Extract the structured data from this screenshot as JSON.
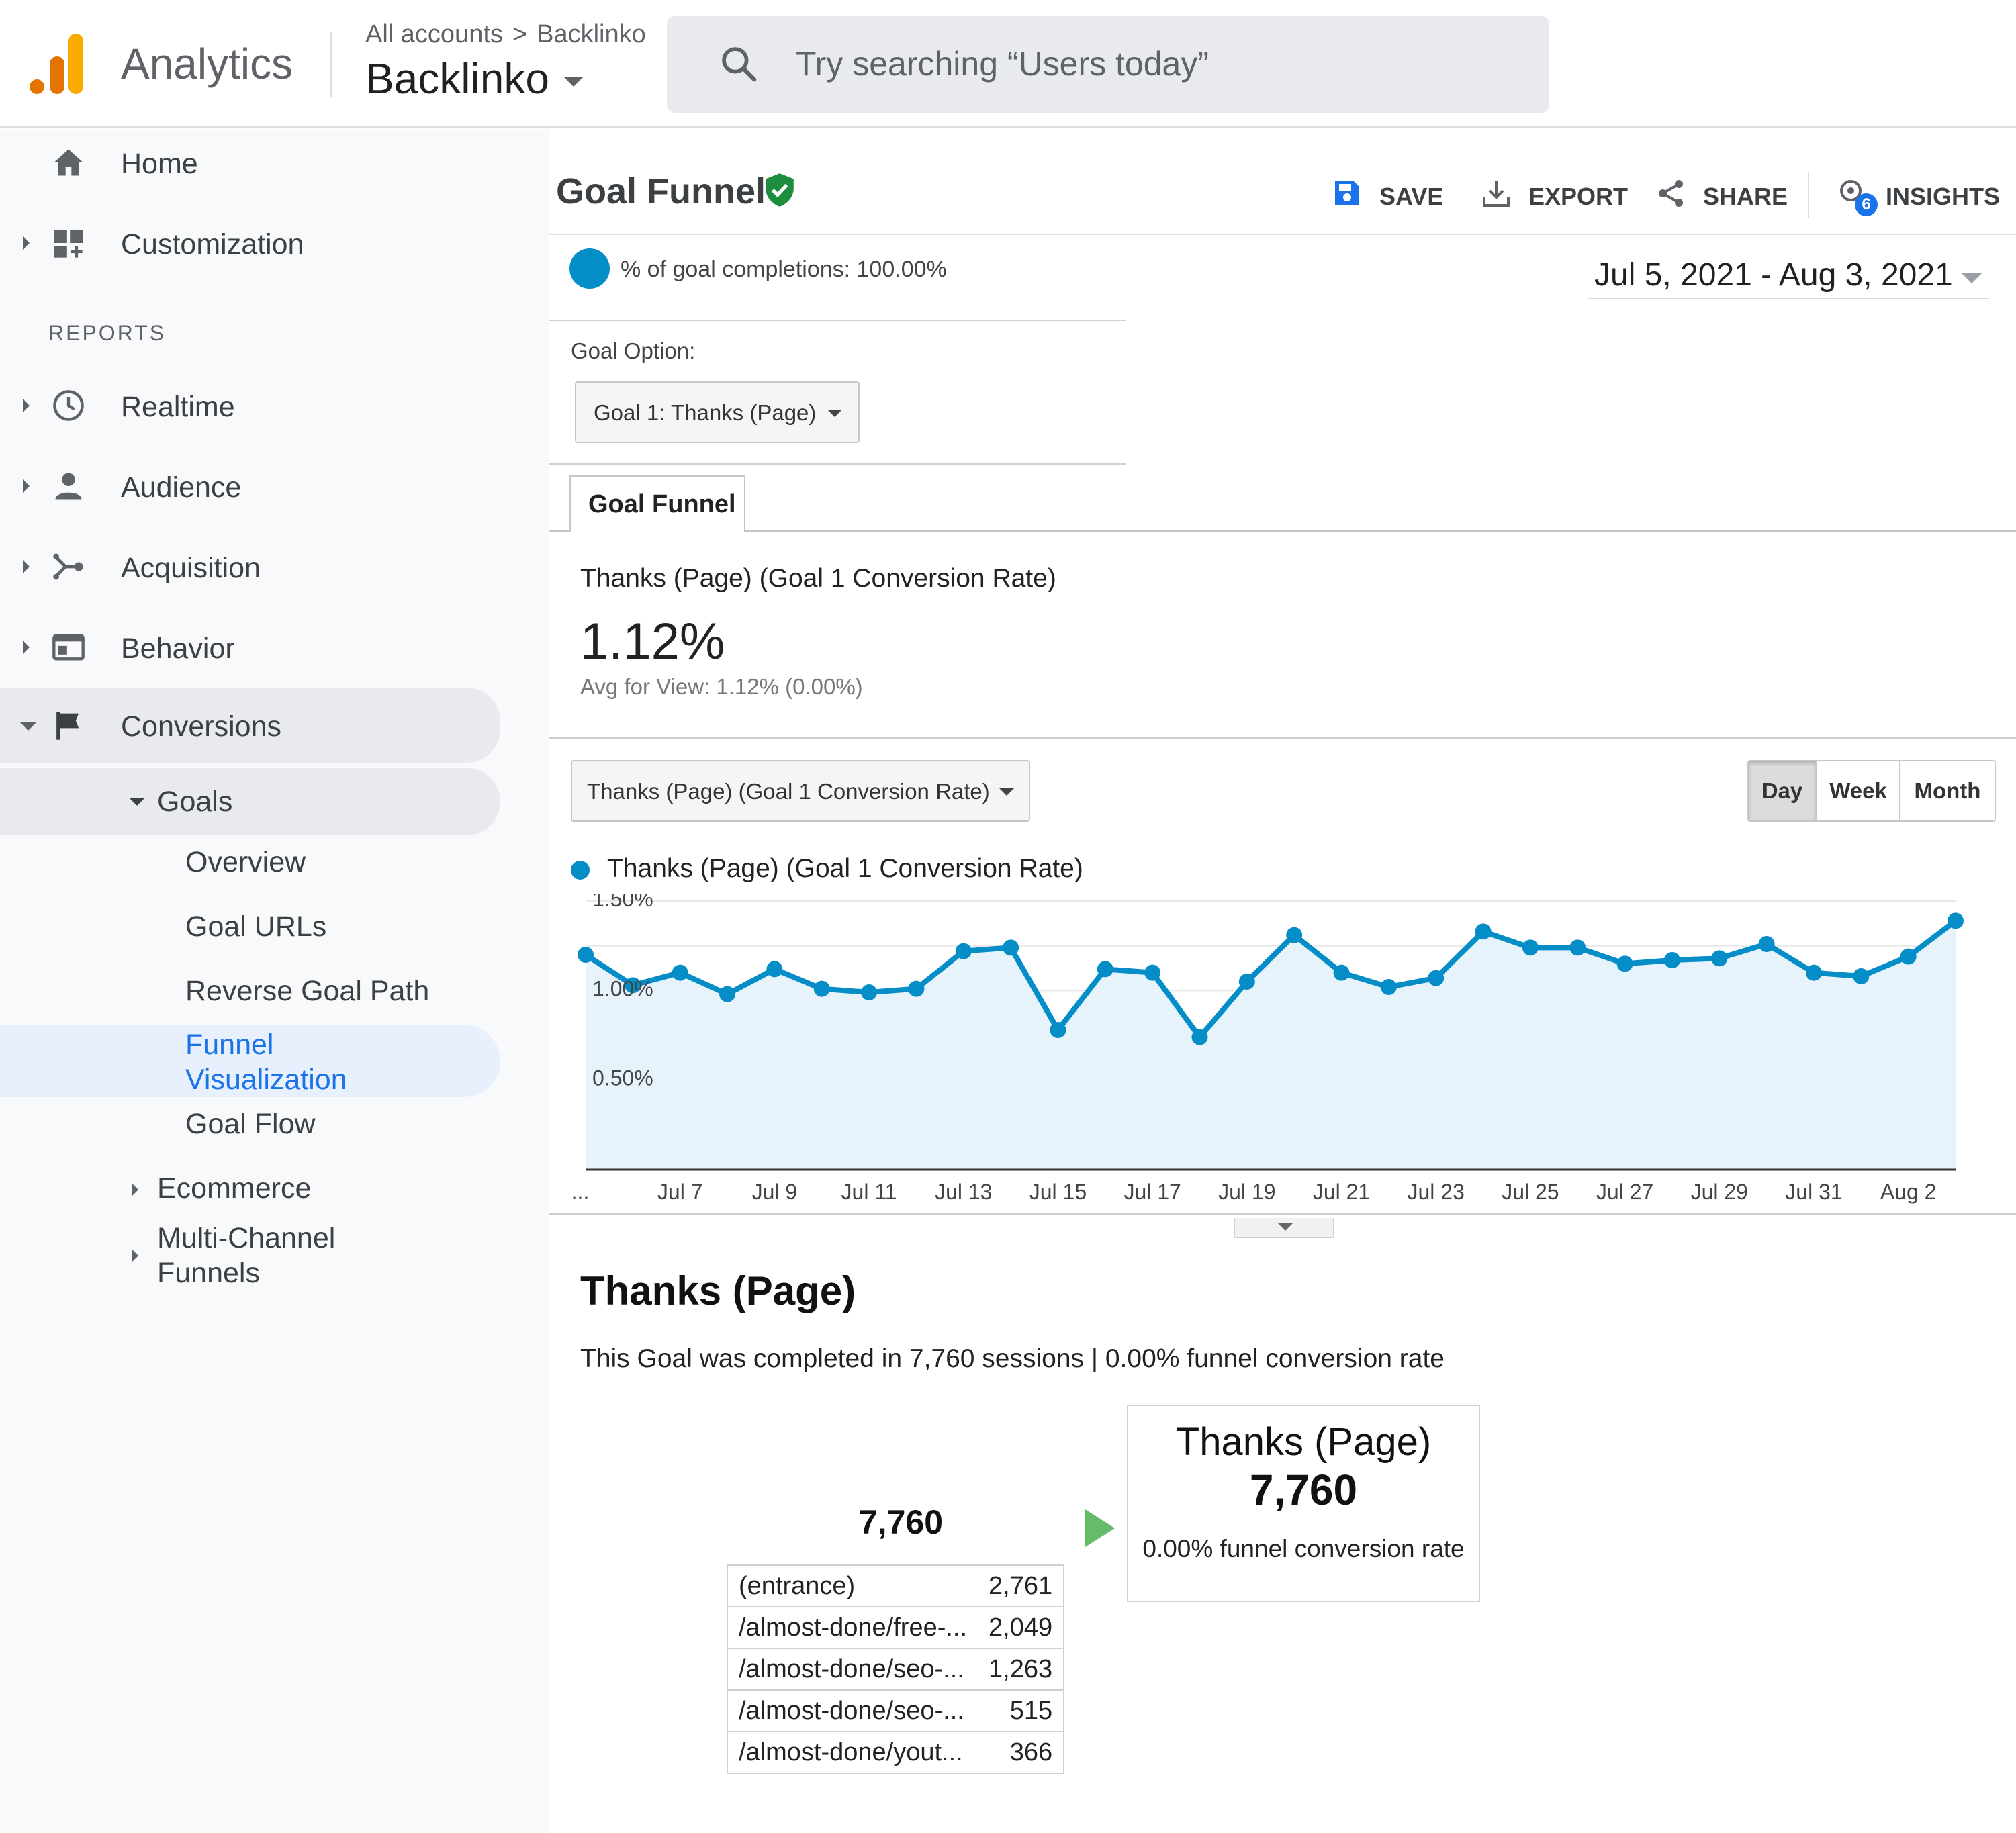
{
  "header": {
    "app_name": "Analytics",
    "breadcrumb": [
      "All accounts",
      "Backlinko"
    ],
    "breadcrumb_sep": ">",
    "property": "Backlinko",
    "search_placeholder": "Try searching “Users today”"
  },
  "sidebar": {
    "home": "Home",
    "customization": "Customization",
    "reports_heading": "REPORTS",
    "realtime": "Realtime",
    "audience": "Audience",
    "acquisition": "Acquisition",
    "behavior": "Behavior",
    "conversions": "Conversions",
    "goals": "Goals",
    "goal_items": [
      "Overview",
      "Goal URLs",
      "Reverse Goal Path",
      "Funnel",
      "Visualization",
      "Goal Flow"
    ],
    "ecommerce": "Ecommerce",
    "multi_channel": [
      "Multi-Channel",
      "Funnels"
    ]
  },
  "toolbar": {
    "title": "Goal Funnel",
    "save": "SAVE",
    "export": "EXPORT",
    "share": "SHARE",
    "insights": "INSIGHTS",
    "insights_badge": "6"
  },
  "report": {
    "segment_label": "% of goal completions: 100.00%",
    "date_range": "Jul 5, 2021 - Aug 3, 2021",
    "goal_option_label": "Goal Option:",
    "goal_option_value": "Goal 1: Thanks (Page)",
    "tab": "Goal Funnel",
    "metric_name": "Thanks (Page) (Goal 1 Conversion Rate)",
    "metric_value": "1.12%",
    "metric_avg": "Avg for View: 1.12% (0.00%)",
    "metric_select": "Thanks (Page) (Goal 1 Conversion Rate)",
    "periods": [
      "Day",
      "Week",
      "Month"
    ],
    "active_period": "Day"
  },
  "chart_data": {
    "type": "area",
    "series": [
      {
        "name": "Thanks (Page) (Goal 1 Conversion Rate)",
        "values": [
          1.2,
          1.03,
          1.1,
          0.98,
          1.12,
          1.01,
          0.99,
          1.01,
          1.22,
          1.24,
          0.78,
          1.12,
          1.1,
          0.74,
          1.05,
          1.31,
          1.1,
          1.02,
          1.07,
          1.33,
          1.24,
          1.24,
          1.15,
          1.17,
          1.18,
          1.26,
          1.1,
          1.08,
          1.19,
          1.39
        ]
      }
    ],
    "y_ticks": [
      "1.50%",
      "1.00%",
      "0.50%"
    ],
    "x_ticks": [
      "...",
      "Jul 7",
      "Jul 9",
      "Jul 11",
      "Jul 13",
      "Jul 15",
      "Jul 17",
      "Jul 19",
      "Jul 21",
      "Jul 23",
      "Jul 25",
      "Jul 27",
      "Jul 29",
      "Jul 31",
      "Aug 2"
    ],
    "ylim": [
      0,
      1.5
    ],
    "line_color": "#058dc7",
    "fill_color": "#e6f3fb",
    "grid": true
  },
  "funnel": {
    "goal_name": "Thanks (Page)",
    "summary": "This Goal was completed in 7,760 sessions | 0.00% funnel conversion rate",
    "entry_total": "7,760",
    "entries": [
      {
        "page": "(entrance)",
        "count": "2,761"
      },
      {
        "page": "/almost-done/free-...",
        "count": "2,049"
      },
      {
        "page": "/almost-done/seo-...",
        "count": "1,263"
      },
      {
        "page": "/almost-done/seo-...",
        "count": "515"
      },
      {
        "page": "/almost-done/yout...",
        "count": "366"
      }
    ],
    "step_name": "Thanks (Page)",
    "step_count": "7,760",
    "step_rate": "0.00% funnel conversion rate"
  }
}
